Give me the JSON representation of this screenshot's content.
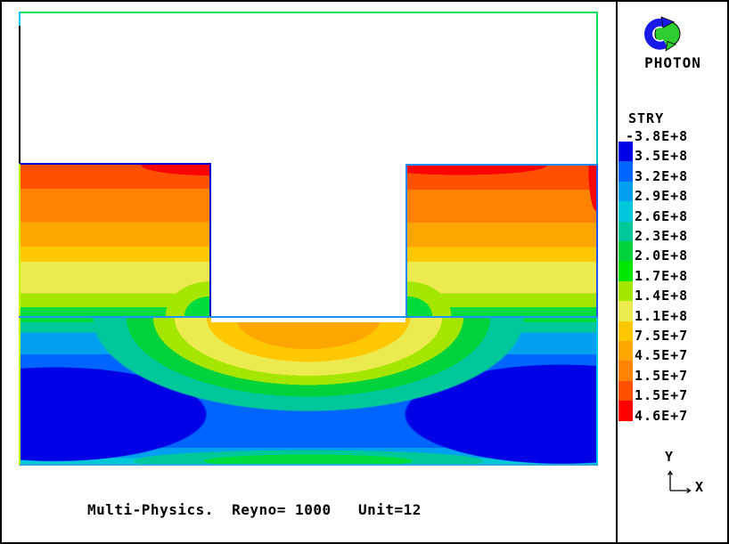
{
  "brand": "PHOTON",
  "caption": "Multi-Physics.  Reyno= 1000   Unit=12",
  "axis": {
    "x": "X",
    "y": "Y"
  },
  "legend": {
    "title": "STRY",
    "labels": [
      "-3.8E+8",
      "-3.5E+8",
      "-3.2E+8",
      "-2.9E+8",
      "-2.6E+8",
      "-2.3E+8",
      "-2.0E+8",
      "-1.7E+8",
      "-1.4E+8",
      "-1.1E+8",
      "-7.5E+7",
      "-4.5E+7",
      "-1.5E+7",
      " 1.5E+7",
      " 4.6E+7"
    ],
    "swatch_colors": [
      "#0000E6",
      "#0064FF",
      "#00A0F0",
      "#00C8DC",
      "#00C89B",
      "#00D23C",
      "#00E600",
      "#A5E600",
      "#EBEB50",
      "#FFC800",
      "#FFA500",
      "#FF8200",
      "#FF5000",
      "#FF0000"
    ]
  },
  "chart_data": {
    "type": "heatmap",
    "title": "Multi-Physics.  Reyno= 1000   Unit=12",
    "variable": "STRY",
    "contour_levels": [
      -380000000,
      -350000000,
      -320000000,
      -290000000,
      -260000000,
      -230000000,
      -200000000,
      -170000000,
      -140000000,
      -110000000,
      -75000000,
      -45000000,
      -15000000,
      15000000,
      46000000
    ],
    "level_labels": [
      "-3.8E+8",
      "-3.5E+8",
      "-3.2E+8",
      "-2.9E+8",
      "-2.6E+8",
      "-2.3E+8",
      "-2.0E+8",
      "-1.7E+8",
      "-1.4E+8",
      "-1.1E+8",
      "-7.5E+7",
      "-4.5E+7",
      "-1.5E+7",
      " 1.5E+7",
      " 4.6E+7"
    ],
    "band_colors": [
      "#0000E6",
      "#0064FF",
      "#00A0F0",
      "#00C8DC",
      "#00C89B",
      "#00D23C",
      "#00E600",
      "#A5E600",
      "#EBEB50",
      "#FFC800",
      "#FFA500",
      "#FF8200",
      "#FF5000",
      "#FF0000"
    ],
    "legend_position": "right",
    "annotations": [
      "Multi-Physics.",
      "Reyno= 1000",
      "Unit=12"
    ]
  }
}
